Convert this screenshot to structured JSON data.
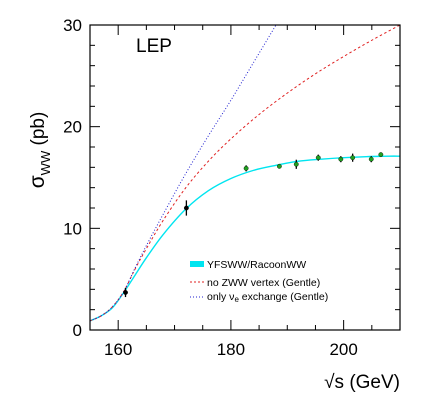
{
  "chart_data": {
    "type": "line",
    "panel_label": "LEP",
    "ylabel": {
      "main": "σ",
      "sub": "WW",
      "unit": " (pb)"
    },
    "xlabel": "√s (GeV)",
    "xlim": [
      155,
      210
    ],
    "ylim": [
      0,
      30
    ],
    "x_ticks": [
      160,
      180,
      200
    ],
    "y_ticks": [
      0,
      10,
      20,
      30
    ],
    "grid": false,
    "legend_position": "bottom-right",
    "colors": {
      "band": "#00e5f0",
      "gentle_no_zww": "#e02020",
      "gentle_nu_only": "#2020d0",
      "data_lep2": "#20a020",
      "data_threshold": "#000000"
    },
    "series": [
      {
        "name": "YFSWW/RacoonWW",
        "style": "band",
        "x": [
          155,
          157,
          159,
          161,
          163,
          165,
          168,
          172,
          176,
          180,
          184,
          188,
          192,
          196,
          200,
          204,
          208,
          210
        ],
        "y": [
          0.9,
          1.4,
          2.2,
          3.7,
          5.4,
          7.1,
          9.4,
          11.9,
          13.7,
          14.9,
          15.7,
          16.2,
          16.6,
          16.8,
          16.95,
          17.05,
          17.1,
          17.1
        ]
      },
      {
        "name": "no ZWW vertex (Gentle)",
        "style": "dashed",
        "x": [
          155,
          157,
          159,
          161,
          163,
          165,
          168,
          172,
          176,
          180,
          185,
          190,
          195,
          200,
          205,
          210
        ],
        "y": [
          0.9,
          1.4,
          2.3,
          3.8,
          6.0,
          8.0,
          10.8,
          14.0,
          16.6,
          18.8,
          21.2,
          23.3,
          25.2,
          26.9,
          28.5,
          30.0
        ]
      },
      {
        "name": "only ν",
        "name_sub": "e",
        "name_rest": " exchange (Gentle)",
        "style": "dotted",
        "x": [
          155,
          157,
          159,
          161,
          163,
          165,
          168,
          172,
          176,
          180,
          184,
          188
        ],
        "y": [
          0.9,
          1.4,
          2.3,
          3.8,
          6.1,
          8.3,
          11.4,
          15.4,
          19.1,
          22.6,
          26.3,
          30.0
        ]
      }
    ],
    "data_points": [
      {
        "x": 161.3,
        "y": 3.69,
        "err": 0.45,
        "group": "threshold"
      },
      {
        "x": 172.1,
        "y": 12.0,
        "err": 0.75,
        "group": "threshold"
      },
      {
        "x": 182.7,
        "y": 15.9,
        "err": 0.3,
        "group": "lep2"
      },
      {
        "x": 188.6,
        "y": 16.1,
        "err": 0.2,
        "group": "lep2"
      },
      {
        "x": 191.6,
        "y": 16.3,
        "err": 0.45,
        "group": "lep2"
      },
      {
        "x": 195.5,
        "y": 16.95,
        "err": 0.3,
        "group": "lep2"
      },
      {
        "x": 199.5,
        "y": 16.8,
        "err": 0.3,
        "group": "lep2"
      },
      {
        "x": 201.6,
        "y": 16.95,
        "err": 0.4,
        "group": "lep2"
      },
      {
        "x": 204.9,
        "y": 16.8,
        "err": 0.3,
        "group": "lep2"
      },
      {
        "x": 206.6,
        "y": 17.25,
        "err": 0.2,
        "group": "lep2"
      }
    ]
  }
}
